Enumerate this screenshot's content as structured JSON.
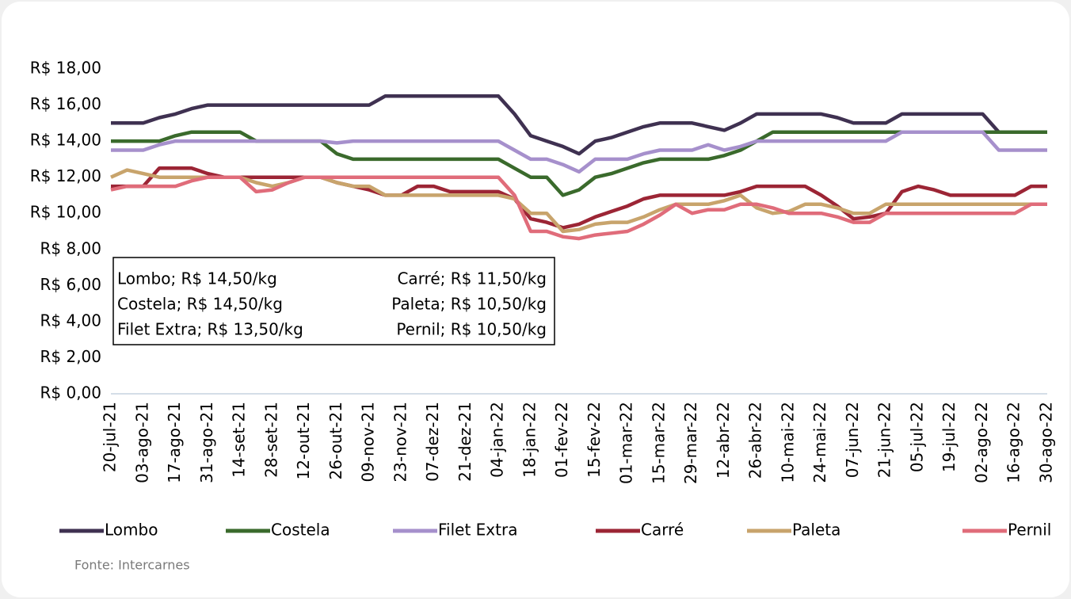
{
  "chart_data": {
    "type": "line",
    "categories": [
      "20-jul-21",
      null,
      "03-ago-21",
      null,
      "17-ago-21",
      null,
      "31-ago-21",
      null,
      "14-set-21",
      null,
      "28-set-21",
      null,
      "12-out-21",
      null,
      "26-out-21",
      null,
      "09-nov-21",
      null,
      "23-nov-21",
      null,
      "07-dez-21",
      null,
      "21-dez-21",
      null,
      "04-jan-22",
      null,
      "18-jan-22",
      null,
      "01-fev-22",
      null,
      "15-fev-22",
      null,
      "01-mar-22",
      null,
      "15-mar-22",
      null,
      "29-mar-22",
      null,
      "12-abr-22",
      null,
      "26-abr-22",
      null,
      "10-mai-22",
      null,
      "24-mai-22",
      null,
      "07-jun-22",
      null,
      "21-jun-22",
      null,
      "05-jul-22",
      null,
      "19-jul-22",
      null,
      "02-ago-22",
      null,
      "16-ago-22",
      null,
      "30-ago-22"
    ],
    "series": [
      {
        "name": "Lombo",
        "color": "#3f3151",
        "values": [
          15,
          15,
          15,
          15.3,
          15.5,
          15.8,
          16,
          16,
          16,
          16,
          16,
          16,
          16,
          16,
          16,
          16,
          16,
          16.5,
          16.5,
          16.5,
          16.5,
          16.5,
          16.5,
          16.5,
          16.5,
          15.5,
          14.3,
          14,
          13.7,
          13.3,
          14,
          14.2,
          14.5,
          14.8,
          15,
          15,
          15,
          14.8,
          14.6,
          15,
          15.5,
          15.5,
          15.5,
          15.5,
          15.5,
          15.3,
          15,
          15,
          15,
          15.5,
          15.5,
          15.5,
          15.5,
          15.5,
          15.5,
          14.5,
          14.5,
          14.5,
          14.5
        ]
      },
      {
        "name": "Costela",
        "color": "#3a6a2c",
        "values": [
          14,
          14,
          14,
          14,
          14.3,
          14.5,
          14.5,
          14.5,
          14.5,
          14,
          14,
          14,
          14,
          14,
          13.3,
          13,
          13,
          13,
          13,
          13,
          13,
          13,
          13,
          13,
          13,
          12.5,
          12,
          12,
          11,
          11.3,
          12,
          12.2,
          12.5,
          12.8,
          13,
          13,
          13,
          13,
          13.2,
          13.5,
          14,
          14.5,
          14.5,
          14.5,
          14.5,
          14.5,
          14.5,
          14.5,
          14.5,
          14.5,
          14.5,
          14.5,
          14.5,
          14.5,
          14.5,
          14.5,
          14.5,
          14.5,
          14.5
        ]
      },
      {
        "name": "Filet Extra",
        "color": "#a690cc",
        "values": [
          13.5,
          13.5,
          13.5,
          13.8,
          14,
          14,
          14,
          14,
          14,
          14,
          14,
          14,
          14,
          14,
          13.9,
          14,
          14,
          14,
          14,
          14,
          14,
          14,
          14,
          14,
          14,
          13.5,
          13,
          13,
          12.7,
          12.3,
          13,
          13,
          13,
          13.3,
          13.5,
          13.5,
          13.5,
          13.8,
          13.5,
          13.7,
          14,
          14,
          14,
          14,
          14,
          14,
          14,
          14,
          14,
          14.5,
          14.5,
          14.5,
          14.5,
          14.5,
          14.5,
          13.5,
          13.5,
          13.5,
          13.5
        ]
      },
      {
        "name": "Carré",
        "color": "#9c2535",
        "values": [
          11.5,
          11.5,
          11.5,
          12.5,
          12.5,
          12.5,
          12.2,
          12,
          12,
          12,
          12,
          12,
          12,
          12,
          11.7,
          11.5,
          11.3,
          11,
          11,
          11.5,
          11.5,
          11.2,
          11.2,
          11.2,
          11.2,
          10.8,
          9.7,
          9.5,
          9.2,
          9.4,
          9.8,
          10.1,
          10.4,
          10.8,
          11,
          11,
          11,
          11,
          11,
          11.2,
          11.5,
          11.5,
          11.5,
          11.5,
          11,
          10.4,
          9.7,
          9.8,
          10,
          11.2,
          11.5,
          11.3,
          11,
          11,
          11,
          11,
          11,
          11.5,
          11.5
        ]
      },
      {
        "name": "Paleta",
        "color": "#c8a46c",
        "values": [
          12,
          12.4,
          12.2,
          12,
          12,
          12,
          12,
          12,
          12,
          11.7,
          11.5,
          11.7,
          12,
          12,
          11.7,
          11.5,
          11.5,
          11,
          11,
          11,
          11,
          11,
          11,
          11,
          11,
          10.8,
          10,
          10,
          9,
          9.1,
          9.4,
          9.5,
          9.5,
          9.8,
          10.2,
          10.5,
          10.5,
          10.5,
          10.7,
          11,
          10.3,
          10,
          10.1,
          10.5,
          10.5,
          10.3,
          10,
          10,
          10.5,
          10.5,
          10.5,
          10.5,
          10.5,
          10.5,
          10.5,
          10.5,
          10.5,
          10.5,
          10.5
        ]
      },
      {
        "name": "Pernil",
        "color": "#e06c7a",
        "values": [
          11.3,
          11.5,
          11.5,
          11.5,
          11.5,
          11.8,
          12,
          12,
          12,
          11.2,
          11.3,
          11.7,
          12,
          12,
          12,
          12,
          12,
          12,
          12,
          12,
          12,
          12,
          12,
          12,
          12,
          11,
          9,
          9,
          8.7,
          8.6,
          8.8,
          8.9,
          9,
          9.4,
          9.9,
          10.5,
          10,
          10.2,
          10.2,
          10.5,
          10.5,
          10.3,
          10,
          10,
          10,
          9.8,
          9.5,
          9.5,
          10,
          10,
          10,
          10,
          10,
          10,
          10,
          10,
          10,
          10.5,
          10.5
        ]
      }
    ],
    "ylim": [
      0,
      18
    ],
    "yticks": [
      {
        "value": 0,
        "label": "R$ 0,00"
      },
      {
        "value": 2,
        "label": "R$ 2,00"
      },
      {
        "value": 4,
        "label": "R$ 4,00"
      },
      {
        "value": 6,
        "label": "R$ 6,00"
      },
      {
        "value": 8,
        "label": "R$ 8,00"
      },
      {
        "value": 10,
        "label": "R$ 10,00"
      },
      {
        "value": 12,
        "label": "R$ 12,00"
      },
      {
        "value": 14,
        "label": "R$ 14,00"
      },
      {
        "value": 16,
        "label": "R$ 16,00"
      },
      {
        "value": 18,
        "label": "R$ 18,00"
      }
    ],
    "grid": false,
    "legend": "bottom",
    "annotations": [
      "Lombo; R$ 14,50/kg",
      "Costela; R$ 14,50/kg",
      "Filet Extra; R$ 13,50/kg",
      "Carré; R$ 11,50/kg",
      "Paleta; R$ 10,50/kg",
      "Pernil; R$ 10,50/kg"
    ],
    "source": "Fonte: Intercarnes"
  }
}
